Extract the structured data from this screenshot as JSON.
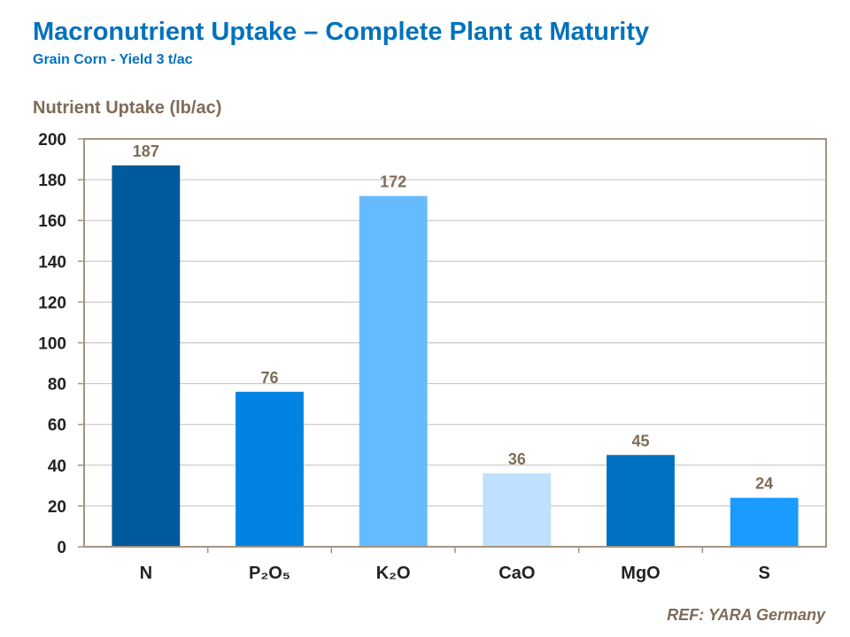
{
  "header": {
    "title": "Macronutrient Uptake – Complete Plant at Maturity",
    "subtitle": "Grain Corn - Yield 3 t/ac"
  },
  "footer": {
    "reference": "REF: YARA Germany"
  },
  "chart_data": {
    "type": "bar",
    "title": "Macronutrient Uptake – Complete Plant at Maturity",
    "subtitle": "Grain Corn - Yield 3 t/ac",
    "xlabel": "",
    "ylabel": "Nutrient Uptake (lb/ac)",
    "ylim": [
      0,
      200
    ],
    "yticks": [
      0,
      20,
      40,
      60,
      80,
      100,
      120,
      140,
      160,
      180,
      200
    ],
    "grid": true,
    "legend": "none",
    "categories": [
      "N",
      "P₂O₅",
      "K₂O",
      "CaO",
      "MgO",
      "S"
    ],
    "values": [
      187,
      76,
      172,
      36,
      45,
      24
    ],
    "colors": [
      "#005a9c",
      "#0083e3",
      "#66bbff",
      "#bfe1ff",
      "#0070c0",
      "#1a9bff"
    ]
  }
}
